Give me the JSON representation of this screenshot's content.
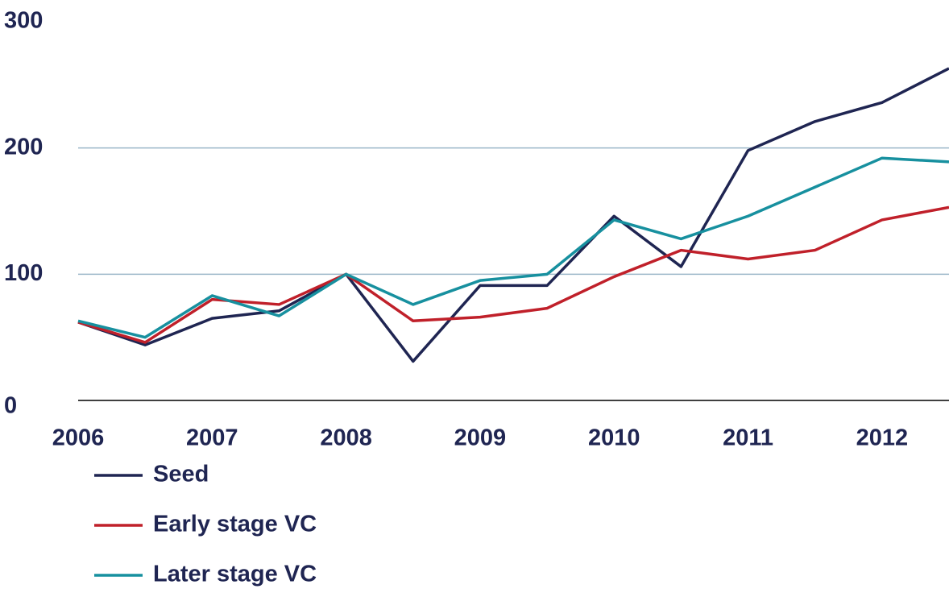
{
  "chart_data": {
    "type": "line",
    "x": [
      2006,
      2006.5,
      2007,
      2007.5,
      2008,
      2008.5,
      2009,
      2009.5,
      2010,
      2010.5,
      2011,
      2011.5,
      2012,
      2012.5
    ],
    "series": [
      {
        "name": "Seed",
        "color": "#1f2552",
        "values": [
          62,
          44,
          65,
          71,
          100,
          31,
          91,
          91,
          146,
          106,
          198,
          221,
          236,
          263
        ]
      },
      {
        "name": "Early stage VC",
        "color": "#c0202a",
        "values": [
          62,
          46,
          80,
          76,
          100,
          63,
          66,
          73,
          98,
          119,
          112,
          119,
          143,
          153
        ]
      },
      {
        "name": "Later stage VC",
        "color": "#17909f",
        "values": [
          63,
          50,
          83,
          67,
          100,
          76,
          95,
          100,
          143,
          128,
          146,
          169,
          192,
          189
        ]
      }
    ],
    "xlim": [
      2006,
      2012.5
    ],
    "xticks": [
      2006,
      2007,
      2008,
      2009,
      2010,
      2011,
      2012
    ],
    "ylim": [
      0,
      300
    ],
    "yticks": [
      0,
      100,
      200,
      300
    ],
    "grid": true,
    "legend": "bottom"
  }
}
